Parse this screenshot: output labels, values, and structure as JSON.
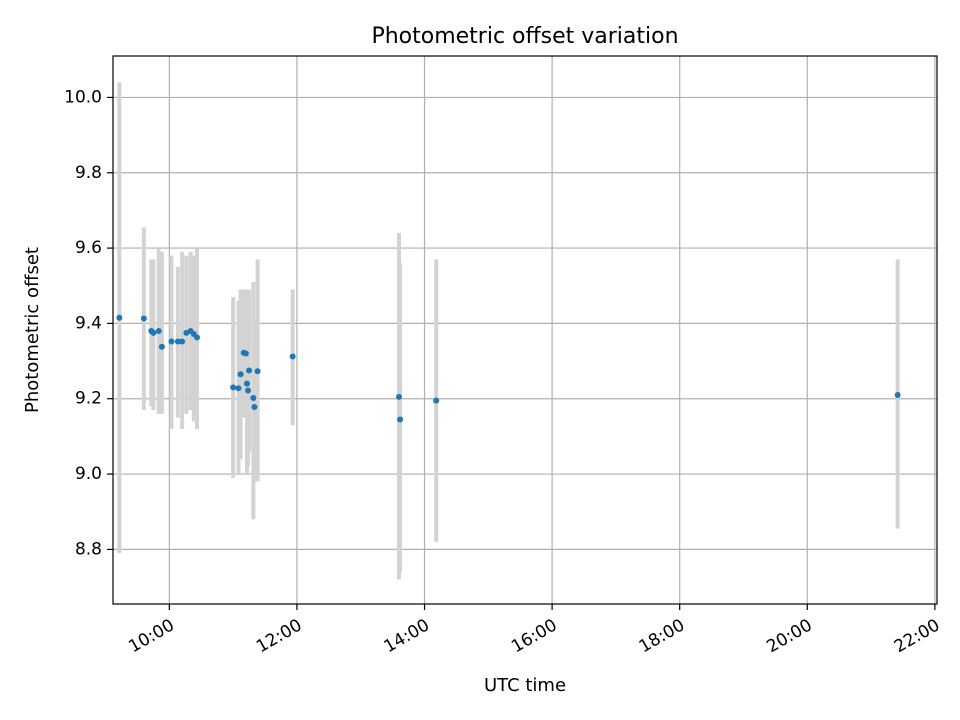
{
  "chart_data": {
    "type": "scatter",
    "title": "Photometric offset variation",
    "xlabel": "UTC time",
    "ylabel": "Photometric offset",
    "x_axis": {
      "unit": "time of day",
      "range": [
        "09:07",
        "22:02"
      ],
      "ticks": [
        "10:00",
        "12:00",
        "14:00",
        "16:00",
        "18:00",
        "20:00",
        "22:00"
      ]
    },
    "y_axis": {
      "range": [
        8.655,
        10.11
      ],
      "ticks": [
        8.8,
        9.0,
        9.2,
        9.4,
        9.6,
        9.8,
        10.0
      ],
      "tick_labels": [
        "8.8",
        "9.0",
        "9.2",
        "9.4",
        "9.6",
        "9.8",
        "10.0"
      ]
    },
    "grid": true,
    "marker_color": "#1f77b4",
    "errorbar_color": "#d3d3d3",
    "points": [
      {
        "x": "09:13",
        "y": 9.415,
        "ylow": 8.79,
        "yhigh": 10.04
      },
      {
        "x": "09:36",
        "y": 9.413,
        "ylow": 9.17,
        "yhigh": 9.655
      },
      {
        "x": "09:43",
        "y": 9.38,
        "ylow": 9.18,
        "yhigh": 9.57
      },
      {
        "x": "09:45",
        "y": 9.375,
        "ylow": 9.17,
        "yhigh": 9.57
      },
      {
        "x": "09:50",
        "y": 9.38,
        "ylow": 9.16,
        "yhigh": 9.6
      },
      {
        "x": "09:53",
        "y": 9.338,
        "ylow": 9.16,
        "yhigh": 9.59
      },
      {
        "x": "10:02",
        "y": 9.352,
        "ylow": 9.12,
        "yhigh": 9.58
      },
      {
        "x": "10:08",
        "y": 9.352,
        "ylow": 9.15,
        "yhigh": 9.55
      },
      {
        "x": "10:12",
        "y": 9.352,
        "ylow": 9.12,
        "yhigh": 9.59
      },
      {
        "x": "10:16",
        "y": 9.375,
        "ylow": 9.16,
        "yhigh": 9.58
      },
      {
        "x": "10:20",
        "y": 9.38,
        "ylow": 9.17,
        "yhigh": 9.59
      },
      {
        "x": "10:23",
        "y": 9.372,
        "ylow": 9.14,
        "yhigh": 9.58
      },
      {
        "x": "10:26",
        "y": 9.363,
        "ylow": 9.12,
        "yhigh": 9.6
      },
      {
        "x": "11:00",
        "y": 9.23,
        "ylow": 8.99,
        "yhigh": 9.47
      },
      {
        "x": "11:05",
        "y": 9.228,
        "ylow": 9.0,
        "yhigh": 9.46
      },
      {
        "x": "11:07",
        "y": 9.265,
        "ylow": 9.04,
        "yhigh": 9.49
      },
      {
        "x": "11:10",
        "y": 9.322,
        "ylow": 9.15,
        "yhigh": 9.49
      },
      {
        "x": "11:12",
        "y": 9.32,
        "ylow": 9.15,
        "yhigh": 9.49
      },
      {
        "x": "11:13",
        "y": 9.24,
        "ylow": 9.0,
        "yhigh": 9.49
      },
      {
        "x": "11:14",
        "y": 9.222,
        "ylow": 9.02,
        "yhigh": 9.44
      },
      {
        "x": "11:15",
        "y": 9.275,
        "ylow": 9.06,
        "yhigh": 9.49
      },
      {
        "x": "11:19",
        "y": 9.202,
        "ylow": 8.88,
        "yhigh": 9.51
      },
      {
        "x": "11:20",
        "y": 9.178,
        "ylow": 8.98,
        "yhigh": 9.4
      },
      {
        "x": "11:23",
        "y": 9.273,
        "ylow": 8.98,
        "yhigh": 9.57
      },
      {
        "x": "11:56",
        "y": 9.312,
        "ylow": 9.13,
        "yhigh": 9.49
      },
      {
        "x": "13:36",
        "y": 9.205,
        "ylow": 8.72,
        "yhigh": 9.64
      },
      {
        "x": "13:37",
        "y": 9.145,
        "ylow": 8.74,
        "yhigh": 9.56
      },
      {
        "x": "14:11",
        "y": 9.195,
        "ylow": 8.82,
        "yhigh": 9.57
      },
      {
        "x": "21:25",
        "y": 9.21,
        "ylow": 8.855,
        "yhigh": 9.57
      }
    ]
  }
}
